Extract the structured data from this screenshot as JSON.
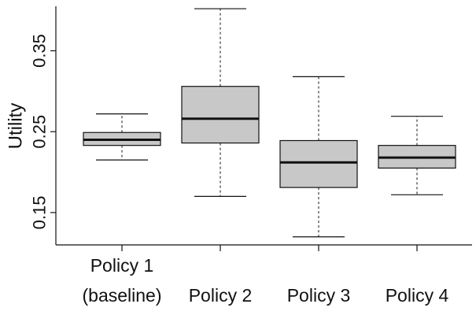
{
  "chart_data": {
    "type": "boxplot",
    "ylabel": "Utility",
    "yticks": [
      0.15,
      0.25,
      0.35
    ],
    "ytick_labels": [
      "0.15",
      "0.25",
      "0.35"
    ],
    "ylim": [
      0.11,
      0.405
    ],
    "categories": [
      {
        "lines": [
          "Policy 1",
          "(baseline)"
        ]
      },
      {
        "lines": [
          "Policy 2"
        ]
      },
      {
        "lines": [
          "Policy 3"
        ]
      },
      {
        "lines": [
          "Policy 4"
        ]
      }
    ],
    "boxes": [
      {
        "whisker_low": 0.215,
        "q1": 0.233,
        "median": 0.24,
        "q3": 0.249,
        "whisker_high": 0.272
      },
      {
        "whisker_low": 0.17,
        "q1": 0.236,
        "median": 0.266,
        "q3": 0.306,
        "whisker_high": 0.402
      },
      {
        "whisker_low": 0.12,
        "q1": 0.181,
        "median": 0.212,
        "q3": 0.239,
        "whisker_high": 0.318
      },
      {
        "whisker_low": 0.172,
        "q1": 0.205,
        "median": 0.218,
        "q3": 0.233,
        "whisker_high": 0.269
      }
    ],
    "colors": {
      "box_fill": "#c8c8c8",
      "stroke": "#111111"
    }
  }
}
